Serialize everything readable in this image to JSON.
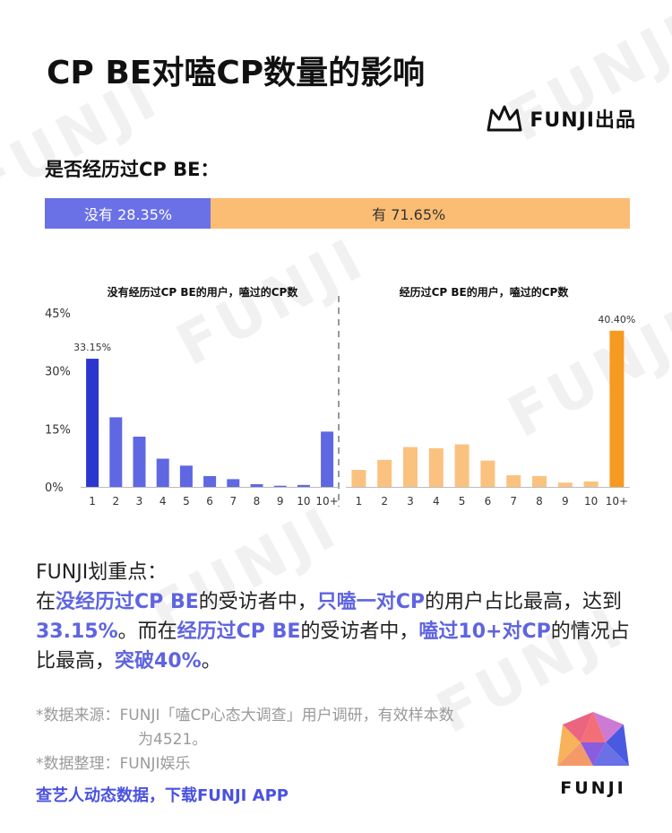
{
  "title": "CP BE对嗑CP数量的影响",
  "brand": {
    "name": "FUNJI出品",
    "bottom_name": "FUNJI"
  },
  "watermark": "FUNJI",
  "question": "是否经历过CP BE：",
  "split_bar": [
    {
      "label": "没有 28.35%",
      "value": 28.35,
      "color": "#6a70e6"
    },
    {
      "label": "有 71.65%",
      "value": 71.65,
      "color": "#fbbd74"
    }
  ],
  "chart_data": [
    {
      "type": "bar",
      "title": "没有经历过CP BE的用户，嗑过的CP数",
      "categories": [
        "1",
        "2",
        "3",
        "4",
        "5",
        "6",
        "7",
        "8",
        "9",
        "10",
        "10+"
      ],
      "values": [
        33.15,
        18.0,
        13.0,
        7.3,
        5.5,
        2.8,
        2.0,
        0.7,
        0.3,
        0.5,
        14.3
      ],
      "data_labels": {
        "0": "33.15%"
      },
      "highlight_index": 0,
      "colors": {
        "bar": "#5f68e2",
        "highlight": "#2b36cf"
      },
      "y_ticks": [
        "0%",
        "15%",
        "30%",
        "45%"
      ],
      "ylim": [
        0,
        45
      ],
      "grid": false
    },
    {
      "type": "bar",
      "title": "经历过CP BE的用户，嗑过的CP数",
      "categories": [
        "1",
        "2",
        "3",
        "4",
        "5",
        "6",
        "7",
        "8",
        "9",
        "10",
        "10+"
      ],
      "values": [
        4.4,
        7.0,
        10.3,
        10.0,
        11.0,
        6.8,
        3.0,
        2.8,
        1.1,
        1.4,
        40.4
      ],
      "data_labels": {
        "10": "40.40%"
      },
      "highlight_index": 10,
      "colors": {
        "bar": "#fbc27f",
        "highlight": "#f79a22"
      },
      "ylim": [
        0,
        45
      ],
      "grid": false
    }
  ],
  "notes": {
    "heading": "FUNJI划重点：",
    "l1": "在",
    "h1": "没经历过CP BE",
    "l2": "的受访者中，",
    "h2": "只嗑一对CP",
    "l3": "的用户占比最高，达到",
    "h3": "33.15%",
    "l4": "。而在",
    "h4": "经历过CP BE",
    "l5": "的受访者中，",
    "h5": "嗑过10+对CP",
    "l6": "的情况占比最高，",
    "h6": "突破40%",
    "l7": "。"
  },
  "source": {
    "line1": "*数据来源：FUNJI「嗑CP心态大调查」用户调研，有效样本数",
    "line2": "为4521。",
    "line3": "*数据整理：FUNJI娱乐"
  },
  "footer_link": "查艺人动态数据，下载FUNJI APP"
}
